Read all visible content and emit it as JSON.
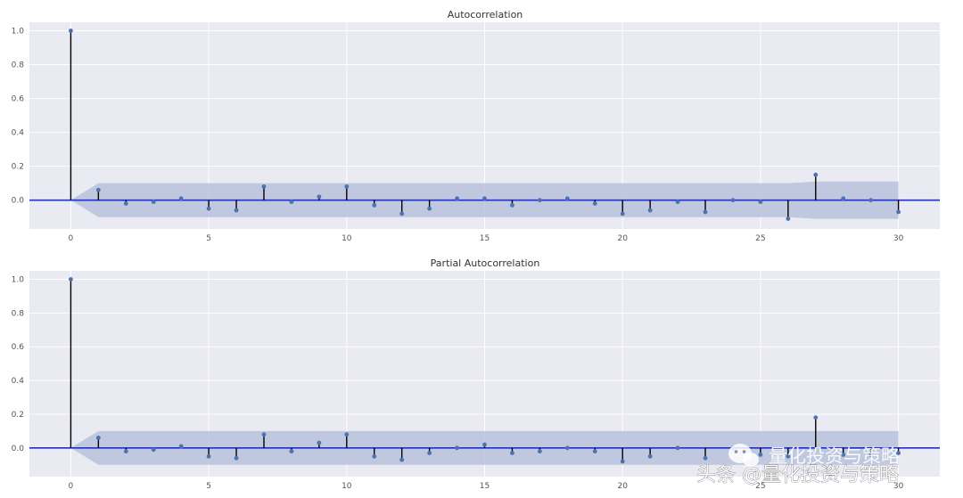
{
  "chart_data": [
    {
      "type": "stem",
      "title": "Autocorrelation",
      "x": [
        0,
        1,
        2,
        3,
        4,
        5,
        6,
        7,
        8,
        9,
        10,
        11,
        12,
        13,
        14,
        15,
        16,
        17,
        18,
        19,
        20,
        21,
        22,
        23,
        24,
        25,
        26,
        27,
        28,
        29,
        30
      ],
      "values": [
        1.0,
        0.06,
        -0.02,
        -0.01,
        0.01,
        -0.05,
        -0.06,
        0.08,
        -0.01,
        0.02,
        0.08,
        -0.03,
        -0.08,
        -0.05,
        0.01,
        0.01,
        -0.03,
        0.0,
        0.01,
        -0.02,
        -0.08,
        -0.06,
        -0.01,
        -0.07,
        0.0,
        -0.01,
        -0.11,
        0.15,
        0.01,
        0.0,
        -0.07
      ],
      "confidence_band": {
        "x_start": 1,
        "x_end": 30,
        "upper": [
          0.1,
          0.1,
          0.1,
          0.1,
          0.1,
          0.1,
          0.1,
          0.1,
          0.1,
          0.1,
          0.1,
          0.1,
          0.1,
          0.1,
          0.1,
          0.1,
          0.1,
          0.1,
          0.1,
          0.1,
          0.1,
          0.1,
          0.1,
          0.1,
          0.1,
          0.1,
          0.11,
          0.11,
          0.11,
          0.11
        ],
        "lower": [
          -0.1,
          -0.1,
          -0.1,
          -0.1,
          -0.1,
          -0.1,
          -0.1,
          -0.1,
          -0.1,
          -0.1,
          -0.1,
          -0.1,
          -0.1,
          -0.1,
          -0.1,
          -0.1,
          -0.1,
          -0.1,
          -0.1,
          -0.1,
          -0.1,
          -0.1,
          -0.1,
          -0.1,
          -0.1,
          -0.1,
          -0.11,
          -0.11,
          -0.11,
          -0.11
        ]
      },
      "xlim": [
        -1.5,
        31.5
      ],
      "ylim": [
        -0.17,
        1.05
      ],
      "xticks": [
        0,
        5,
        10,
        15,
        20,
        25,
        30
      ],
      "xtick_labels": [
        "0",
        "5",
        "10",
        "15",
        "20",
        "25",
        "30"
      ],
      "yticks": [
        0.0,
        0.2,
        0.4,
        0.6,
        0.8,
        1.0
      ],
      "ytick_labels": [
        "0.0",
        "0.2",
        "0.4",
        "0.6",
        "0.8",
        "1.0"
      ],
      "grid": true
    },
    {
      "type": "stem",
      "title": "Partial Autocorrelation",
      "x": [
        0,
        1,
        2,
        3,
        4,
        5,
        6,
        7,
        8,
        9,
        10,
        11,
        12,
        13,
        14,
        15,
        16,
        17,
        18,
        19,
        20,
        21,
        22,
        23,
        24,
        25,
        26,
        27,
        28,
        29,
        30
      ],
      "values": [
        1.0,
        0.06,
        -0.02,
        -0.01,
        0.01,
        -0.05,
        -0.06,
        0.08,
        -0.02,
        0.03,
        0.08,
        -0.05,
        -0.07,
        -0.03,
        0.0,
        0.02,
        -0.03,
        -0.02,
        0.0,
        -0.02,
        -0.08,
        -0.05,
        0.0,
        -0.06,
        0.0,
        -0.04,
        -0.05,
        0.18,
        -0.04,
        -0.04,
        -0.03
      ],
      "confidence_band": {
        "x_start": 1,
        "x_end": 30,
        "upper": [
          0.1,
          0.1,
          0.1,
          0.1,
          0.1,
          0.1,
          0.1,
          0.1,
          0.1,
          0.1,
          0.1,
          0.1,
          0.1,
          0.1,
          0.1,
          0.1,
          0.1,
          0.1,
          0.1,
          0.1,
          0.1,
          0.1,
          0.1,
          0.1,
          0.1,
          0.1,
          0.1,
          0.1,
          0.1,
          0.1
        ],
        "lower": [
          -0.1,
          -0.1,
          -0.1,
          -0.1,
          -0.1,
          -0.1,
          -0.1,
          -0.1,
          -0.1,
          -0.1,
          -0.1,
          -0.1,
          -0.1,
          -0.1,
          -0.1,
          -0.1,
          -0.1,
          -0.1,
          -0.1,
          -0.1,
          -0.1,
          -0.1,
          -0.1,
          -0.1,
          -0.1,
          -0.1,
          -0.1,
          -0.1,
          -0.1,
          -0.1
        ]
      },
      "xlim": [
        -1.5,
        31.5
      ],
      "ylim": [
        -0.17,
        1.05
      ],
      "xticks": [
        0,
        5,
        10,
        15,
        20,
        25,
        30
      ],
      "xtick_labels": [
        "0",
        "5",
        "10",
        "15",
        "20",
        "25",
        "30"
      ],
      "yticks": [
        0.0,
        0.2,
        0.4,
        0.6,
        0.8,
        1.0
      ],
      "ytick_labels": [
        "0.0",
        "0.2",
        "0.4",
        "0.6",
        "0.8",
        "1.0"
      ],
      "grid": true
    }
  ],
  "colors": {
    "plot_background": "#eaeaf2",
    "grid": "#ffffff",
    "stem": "#000000",
    "marker": "#4c72b0",
    "zero_line": "#1f2fd6",
    "confidence_band": "#b8c2dc"
  },
  "watermark": {
    "icon": "wechat-icon",
    "account_name": "量化投资与策略",
    "source_line": "头条 @量化投资与策略"
  }
}
